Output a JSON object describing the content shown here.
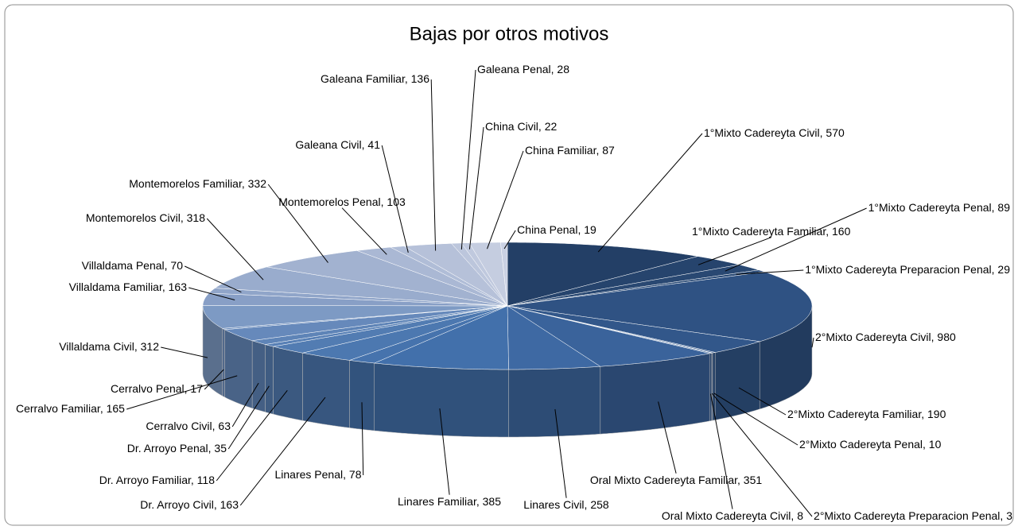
{
  "chart_data": {
    "type": "pie",
    "title": "Bajas por otros motivos",
    "categories": [
      "1°Mixto Cadereyta Civil",
      "1°Mixto Cadereyta Familiar",
      "1°Mixto Cadereyta Penal",
      "1°Mixto Cadereyta Preparacion Penal",
      "2°Mixto Cadereyta Civil",
      "2°Mixto Cadereyta Familiar",
      "2°Mixto Cadereyta Penal",
      "2°Mixto Cadereyta Preparacion Penal",
      "Oral Mixto Cadereyta Civil",
      "Oral Mixto Cadereyta Familiar",
      "Linares Civil",
      "Linares Familiar",
      "Linares Penal",
      "Dr. Arroyo Civil",
      "Dr. Arroyo Familiar",
      "Dr. Arroyo Penal",
      "Cerralvo Civil",
      "Cerralvo Familiar",
      "Cerralvo Penal",
      "Villaldama Civil",
      "Villaldama Familiar",
      "Villaldama Penal",
      "Montemorelos Civil",
      "Montemorelos Familiar",
      "Montemorelos Penal",
      "Galeana Civil",
      "Galeana Familiar",
      "Galeana Penal",
      "China Civil",
      "China Familiar",
      "China Penal"
    ],
    "values": [
      570,
      160,
      89,
      29,
      980,
      190,
      10,
      3,
      8,
      351,
      258,
      385,
      78,
      163,
      118,
      35,
      63,
      165,
      17,
      312,
      163,
      70,
      318,
      332,
      103,
      41,
      136,
      28,
      22,
      87,
      19
    ],
    "value_labels": [
      ", 570",
      ", 160",
      ", 89",
      ", 29",
      ", 980",
      ", 190",
      ", 10",
      ", 3",
      ", 8",
      ", 351",
      ", 258",
      ", 385",
      ", 78",
      ", 163",
      ", 118",
      ", 35",
      ", 63",
      ", 165",
      ", 17",
      ", 312",
      ", 163",
      ", 70",
      ", 318",
      ", 332",
      ", 103",
      ", 41",
      ", 136",
      ", 28",
      ", 22",
      ", 87",
      ", 19"
    ],
    "colors": [
      "#233f66",
      "#26446d",
      "#294872",
      "#2b4b76",
      "#2f5283",
      "#32578a",
      "#345a8e",
      "#355c91",
      "#375f94",
      "#3a639b",
      "#3e69a3",
      "#4270ab",
      "#4673ad",
      "#4c78b0",
      "#527cb2",
      "#5880b5",
      "#5e84b7",
      "#6689bb",
      "#6d8ebd",
      "#7d9ac4",
      "#889fc6",
      "#90a5c9",
      "#99accd",
      "#a2b2d0",
      "#aab8d4",
      "#b0bdd7",
      "#b6c1d9",
      "#bcc6dc",
      "#c0c9de",
      "#c5cde0",
      "#cad1e3"
    ]
  }
}
